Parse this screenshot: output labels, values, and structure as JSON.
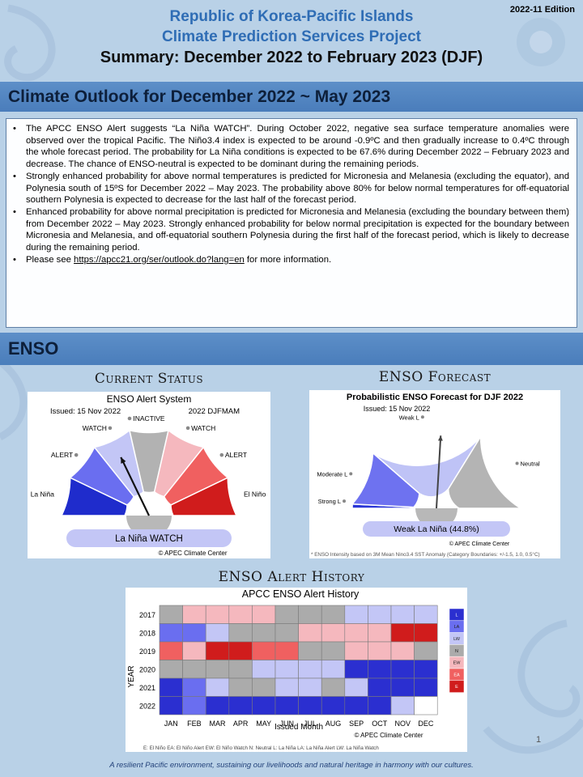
{
  "edition": "2022-11 Edition",
  "header": {
    "line1": "Republic of Korea-Pacific Islands",
    "line2": "Climate Prediction Services Project",
    "line3": "Summary: December 2022 to February 2023 (DJF)"
  },
  "outlook": {
    "title": "Climate Outlook for December 2022 ~ May 2023",
    "bullets": [
      "The APCC ENSO Alert suggests “La Niña WATCH”. During October 2022, negative sea surface temperature anomalies were observed over the tropical Pacific. The Niño3.4 index is expected to be around -0.9ºC and then gradually increase to 0.4ºC through the whole forecast period. The probability for La Niña conditions is expected to be 67.6% during December 2022 – February 2023 and decrease. The chance of ENSO-neutral is expected to be dominant during the remaining periods.",
      "Strongly enhanced probability for above normal temperatures is predicted for Micronesia and Melanesia (excluding the equator), and Polynesia south of 15ºS for December 2022 – May 2023. The probability above 80% for below normal temperatures for off-equatorial southern Polynesia is expected to decrease for the last half of the forecast period.",
      "Enhanced probability for above normal precipitation is predicted for Micronesia and Melanesia (excluding the boundary between them) from December 2022 – May 2023. Strongly enhanced probability for below normal precipitation is expected for the boundary between Micronesia and Melanesia, and off-equatorial southern Polynesia during the first half of the forecast period, which is likely to decrease during the remaining period."
    ],
    "see_prefix": "Please see ",
    "link": "https://apcc21.org/ser/outlook.do?lang=en",
    "see_suffix": "  for more information."
  },
  "enso": {
    "section_title": "ENSO",
    "current_status": {
      "heading": "Current Status",
      "chart_title": "ENSO Alert System",
      "issued": "Issued: 15 Nov 2022",
      "period": "2022 DJFMAM",
      "labels": [
        "La Niña",
        "ALERT",
        "WATCH",
        "INACTIVE",
        "WATCH",
        "ALERT",
        "El Niño"
      ],
      "colors": [
        "#1f2ccc",
        "#6a6ef0",
        "#c3c6f6",
        "#b2b2b2",
        "#f5b8be",
        "#f06060",
        "#d01c1c"
      ],
      "status": "La Niña WATCH",
      "credit": "© APEC Climate Center"
    },
    "forecast": {
      "heading": "ENSO Forecast",
      "chart_title": "Probabilistic ENSO Forecast for DJF 2022",
      "issued": "Issued: 15 Nov 2022",
      "labels": [
        "Strong L",
        "Moderate L",
        "Weak L",
        "Neutral"
      ],
      "probabilities": [
        1.6,
        21.2,
        44.8,
        32.4
      ],
      "colors": [
        "#2a36d6",
        "#6e72f0",
        "#bfc3f6",
        "#b4b4b4"
      ],
      "result": "Weak La Niña (44.8%)",
      "credit": "© APEC Climate Center",
      "note": "* ENSO Intensity based on 3M Mean Nino3.4 SST Anomaly (Category Boundaries: +/-1.5, 1.0, 0.5°C)"
    },
    "history": {
      "heading": "ENSO Alert History",
      "chart_title": "APCC ENSO Alert History",
      "ylabel": "YEAR",
      "xlabel": "Issued Month",
      "credit": "© APEC Climate Center",
      "legend_note": "E: El Niño    EA: El Niño Alert    EW: El Niño Watch    N: Neutral    L: La Niña    LA: La Niña Alert    LW: La Niña Watch"
    }
  },
  "chart_data": {
    "type": "heatmap",
    "title": "APCC ENSO Alert History",
    "xlabel": "Issued Month",
    "ylabel": "YEAR",
    "x": [
      "JAN",
      "FEB",
      "MAR",
      "APR",
      "MAY",
      "JUN",
      "JUL",
      "AUG",
      "SEP",
      "OCT",
      "NOV",
      "DEC"
    ],
    "y": [
      "2017",
      "2018",
      "2019",
      "2020",
      "2021",
      "2022"
    ],
    "categories": [
      "L",
      "LA",
      "LW",
      "N",
      "EW",
      "EA",
      "E"
    ],
    "category_colors": {
      "L": "#2b2fd0",
      "LA": "#6a6ef0",
      "LW": "#c3c6f6",
      "N": "#ababab",
      "EW": "#f5b8be",
      "EA": "#f06060",
      "E": "#d01c1c",
      "": "#ffffff"
    },
    "values": [
      [
        "N",
        "EW",
        "EW",
        "EW",
        "EW",
        "N",
        "N",
        "N",
        "LW",
        "LW",
        "LW",
        "LW"
      ],
      [
        "LA",
        "LA",
        "LW",
        "N",
        "N",
        "N",
        "EW",
        "EW",
        "EW",
        "EW",
        "E",
        "E"
      ],
      [
        "EA",
        "EW",
        "E",
        "E",
        "EA",
        "EA",
        "N",
        "N",
        "EW",
        "EW",
        "EW",
        "N"
      ],
      [
        "N",
        "N",
        "N",
        "N",
        "LW",
        "LW",
        "LW",
        "LW",
        "L",
        "L",
        "L",
        "L"
      ],
      [
        "L",
        "LA",
        "LW",
        "N",
        "N",
        "LW",
        "LW",
        "N",
        "LW",
        "L",
        "L",
        "L"
      ],
      [
        "L",
        "LA",
        "L",
        "L",
        "L",
        "L",
        "L",
        "L",
        "L",
        "L",
        "LW",
        ""
      ]
    ],
    "legend_placement": "right"
  },
  "footer": {
    "tagline": "A resilient Pacific environment, sustaining our livelihoods and natural heritage in harmony with our cultures.",
    "page": "1"
  }
}
